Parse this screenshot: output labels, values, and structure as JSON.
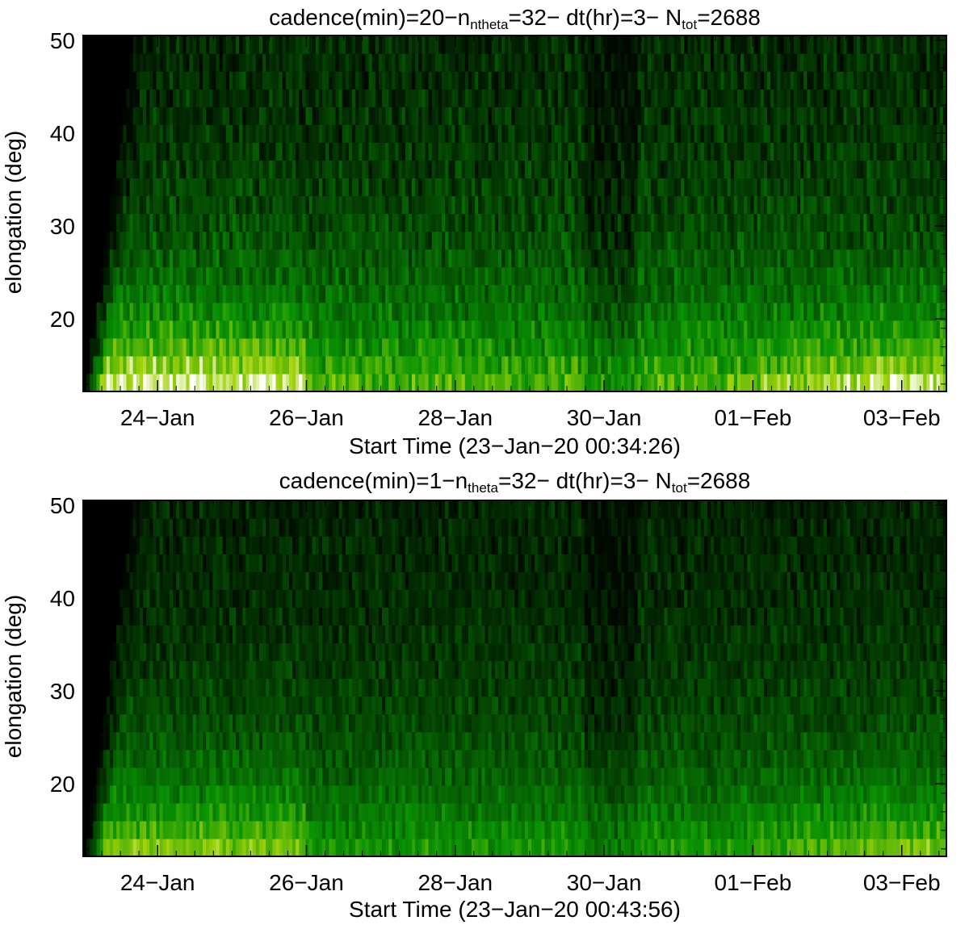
{
  "chart_data": [
    {
      "type": "heatmap",
      "title_parts": {
        "pre": "cadence(min)=20−n",
        "sub1": "ntheta",
        "mid": "=32− dt(hr)=3− N",
        "sub2": "tot",
        "post": "=2688"
      },
      "xlabel": "Start Time (23−Jan−20 00:34:26)",
      "ylabel": "elongation (deg)",
      "xtick_labels": [
        "24−Jan",
        "26−Jan",
        "28−Jan",
        "30−Jan",
        "01−Feb",
        "03−Feb"
      ],
      "xtick_days": [
        1,
        3,
        5,
        7,
        9,
        11
      ],
      "xlim_days": [
        0.0,
        11.6
      ],
      "ylim": [
        12.2,
        50.5
      ],
      "yticks": [
        20,
        30,
        40,
        50
      ],
      "colormap": "black-green-white",
      "no_data_region": "black wedge from 23-Jan to ~23-Jan 18:00",
      "bright_features": [
        "high intensity 23-Jan to 26-Jan below 20 deg",
        "drop after 26-Jan",
        "dark band near 30-Jan",
        "brightening toward 03-Feb"
      ]
    },
    {
      "type": "heatmap",
      "title_parts": {
        "pre": "cadence(min)=1−n",
        "sub1": "theta",
        "mid": "=32− dt(hr)=3− N",
        "sub2": "tot",
        "post": "=2688"
      },
      "xlabel": "Start Time (23−Jan−20 00:43:56)",
      "ylabel": "elongation (deg)",
      "xtick_labels": [
        "24−Jan",
        "26−Jan",
        "28−Jan",
        "30−Jan",
        "01−Feb",
        "03−Feb"
      ],
      "xtick_days": [
        1,
        3,
        5,
        7,
        9,
        11
      ],
      "xlim_days": [
        0.0,
        11.6
      ],
      "ylim": [
        12.2,
        50.5
      ],
      "yticks": [
        20,
        30,
        40,
        50
      ],
      "colormap": "black-green-white",
      "no_data_region": "black wedge from 23-Jan to ~23-Jan 18:00",
      "bright_features": [
        "high intensity 23-Jan to 26-Jan below 20 deg",
        "drop after 26-Jan",
        "dark band near 30-Jan",
        "brightening toward 03-Feb"
      ]
    }
  ]
}
